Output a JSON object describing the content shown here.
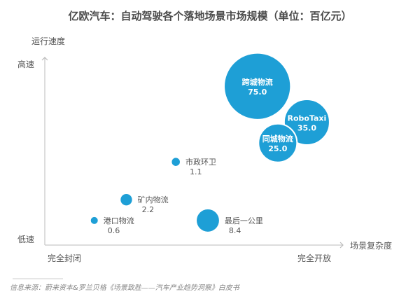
{
  "chart_data": {
    "type": "scatter",
    "title": "亿欧汽车：自动驾驶各个落地场景市场规模（单位：百亿元）",
    "ylabel": "运行速度",
    "xlabel": "场景复杂度",
    "y_ticks": {
      "high": "高速",
      "low": "低速"
    },
    "x_ticks": {
      "low": "完全封闭",
      "high": "完全开放"
    },
    "points": [
      {
        "name": "跨城物流",
        "value": "75.0",
        "size": 75.0,
        "x": 7.3,
        "y": 8.4,
        "label_inside": true
      },
      {
        "name": "RoboTaxi",
        "value": "35.0",
        "size": 35.0,
        "x": 9.0,
        "y": 6.5,
        "label_inside": true
      },
      {
        "name": "同城物流",
        "value": "25.0",
        "size": 25.0,
        "x": 8.0,
        "y": 5.4,
        "label_inside": true
      },
      {
        "name": "市政环卫",
        "value": "1.1",
        "size": 1.1,
        "x": 4.5,
        "y": 4.4,
        "label_inside": false
      },
      {
        "name": "矿内物流",
        "value": "2.2",
        "size": 2.2,
        "x": 2.8,
        "y": 2.4,
        "label_inside": false
      },
      {
        "name": "港口物流",
        "value": "0.6",
        "size": 0.6,
        "x": 1.7,
        "y": 1.3,
        "label_inside": false
      },
      {
        "name": "最后一公里",
        "value": "8.4",
        "size": 8.4,
        "x": 5.6,
        "y": 1.3,
        "label_inside": false
      }
    ],
    "colors": {
      "bubble": "#1e9fd6",
      "bubble_edge": "#ffffff"
    }
  },
  "source": "信息来源：蔚来资本&罗兰贝格《场景致胜——汽车产业趋势洞察》白皮书"
}
